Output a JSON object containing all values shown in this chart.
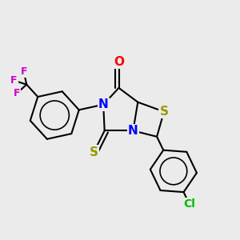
{
  "background_color": "#ebebeb",
  "atoms": {
    "O": {
      "color": "#ff0000"
    },
    "N": {
      "color": "#0000ff"
    },
    "S": {
      "color": "#999900"
    },
    "Cl": {
      "color": "#00bb00"
    },
    "F": {
      "color": "#cc00cc"
    }
  },
  "bond_color": "#000000",
  "bond_width": 1.5,
  "figsize": [
    3.0,
    3.0
  ],
  "dpi": 100
}
